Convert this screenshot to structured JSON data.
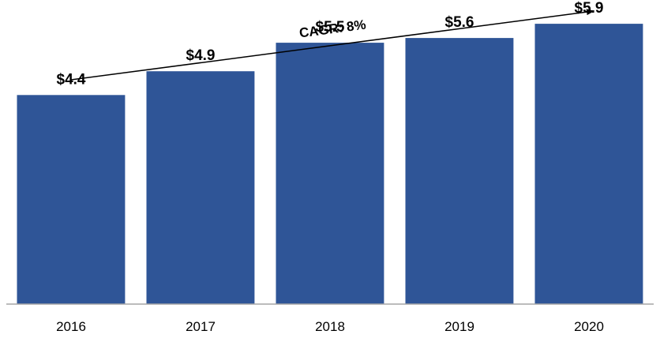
{
  "chart_data": {
    "type": "bar",
    "title": "",
    "xlabel": "",
    "ylabel": "",
    "categories": [
      "2016",
      "2017",
      "2018",
      "2019",
      "2020"
    ],
    "values": [
      4.4,
      4.9,
      5.5,
      5.6,
      5.9
    ],
    "value_labels": [
      "$4.4",
      "$4.9",
      "$5.5",
      "$5.6",
      "$5.9"
    ],
    "ylim": [
      0,
      6.3
    ],
    "grid": false,
    "legend": "none",
    "bar_color": "#2f5597",
    "axis_color": "#a6a6a6",
    "annotation": {
      "text": "CAGR: 8%",
      "kind": "trend-arrow"
    }
  }
}
